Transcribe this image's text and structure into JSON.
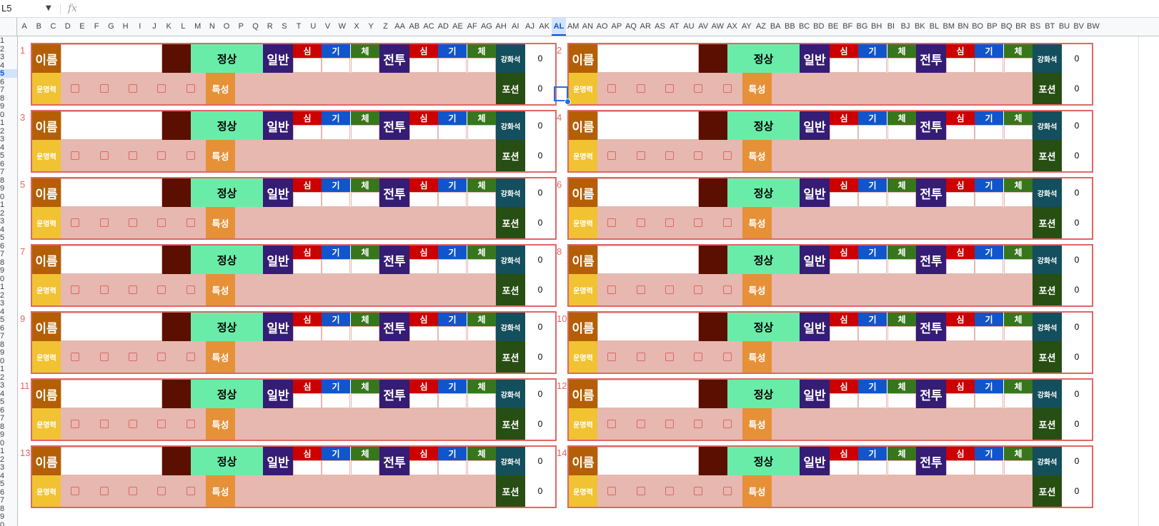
{
  "formula_bar": {
    "name_box": "L5",
    "fx_label": "fx"
  },
  "columns": [
    "A",
    "B",
    "C",
    "D",
    "E",
    "F",
    "G",
    "H",
    "I",
    "J",
    "K",
    "L",
    "M",
    "N",
    "O",
    "P",
    "Q",
    "R",
    "S",
    "T",
    "U",
    "V",
    "W",
    "X",
    "Y",
    "Z",
    "AA",
    "AB",
    "AC",
    "AD",
    "AE",
    "AF",
    "AG",
    "AH",
    "AI",
    "AJ",
    "AK",
    "AL",
    "AM",
    "AN",
    "AO",
    "AP",
    "AQ",
    "AR",
    "AS",
    "AT",
    "AU",
    "AV",
    "AW",
    "AX",
    "AY",
    "AZ",
    "BA",
    "BB",
    "BC",
    "BD",
    "BE",
    "BF",
    "BG",
    "BH",
    "BI",
    "BJ",
    "BK",
    "BL",
    "BM",
    "BN",
    "BO",
    "BP",
    "BQ",
    "BR",
    "BS",
    "BT",
    "BU",
    "BV",
    "BW"
  ],
  "selected_column": "AL",
  "row_labels": [
    "1",
    "2",
    "3",
    "4",
    "5",
    "6",
    "7",
    "8",
    "9",
    "0",
    "1",
    "2",
    "3",
    "4",
    "5",
    "6",
    "7",
    "8",
    "9",
    "0",
    "1",
    "2",
    "3",
    "4",
    "5",
    "6",
    "7",
    "8",
    "9",
    "0",
    "1",
    "2",
    "3",
    "4",
    "5",
    "6",
    "7",
    "8",
    "9",
    "0",
    "1",
    "2",
    "3",
    "4",
    "5",
    "6",
    "7",
    "8",
    "9",
    "0",
    "1",
    "2",
    "3",
    "4",
    "5",
    "6",
    "7",
    "8",
    "9",
    "0"
  ],
  "selected_row_label": "5",
  "labels": {
    "name": "이름",
    "status": "정상",
    "general": "일반",
    "combat": "전투",
    "mind": "심",
    "energy": "기",
    "body": "체",
    "enhance": "강화석",
    "potion": "포션",
    "fate": "운명력",
    "trait": "특성"
  },
  "cards": [
    {
      "number": "1",
      "enhance_value": "0",
      "potion_value": "0"
    },
    {
      "number": "2",
      "enhance_value": "0",
      "potion_value": "0"
    },
    {
      "number": "3",
      "enhance_value": "0",
      "potion_value": "0"
    },
    {
      "number": "4",
      "enhance_value": "0",
      "potion_value": "0"
    },
    {
      "number": "5",
      "enhance_value": "0",
      "potion_value": "0"
    },
    {
      "number": "6",
      "enhance_value": "0",
      "potion_value": "0"
    },
    {
      "number": "7",
      "enhance_value": "0",
      "potion_value": "0"
    },
    {
      "number": "8",
      "enhance_value": "0",
      "potion_value": "0"
    },
    {
      "number": "9",
      "enhance_value": "0",
      "potion_value": "0"
    },
    {
      "number": "10",
      "enhance_value": "0",
      "potion_value": "0"
    },
    {
      "number": "11",
      "enhance_value": "0",
      "potion_value": "0"
    },
    {
      "number": "12",
      "enhance_value": "0",
      "potion_value": "0"
    },
    {
      "number": "13",
      "enhance_value": "0",
      "potion_value": "0"
    },
    {
      "number": "14",
      "enhance_value": "0",
      "potion_value": "0"
    }
  ],
  "colors": {
    "card_border": "#e06666",
    "name_label": "#b45f06",
    "status_fill": "#6aeca9",
    "general_label": "#351c75",
    "mind": "#cc0000",
    "energy": "#1155cc",
    "body": "#38761d",
    "enhance_label": "#134f5c",
    "potion_label": "#274e13",
    "fate_label": "#f1c232",
    "trait_label": "#e69138",
    "lower_row": "#e6b8af",
    "selection": "#1a73e8"
  }
}
